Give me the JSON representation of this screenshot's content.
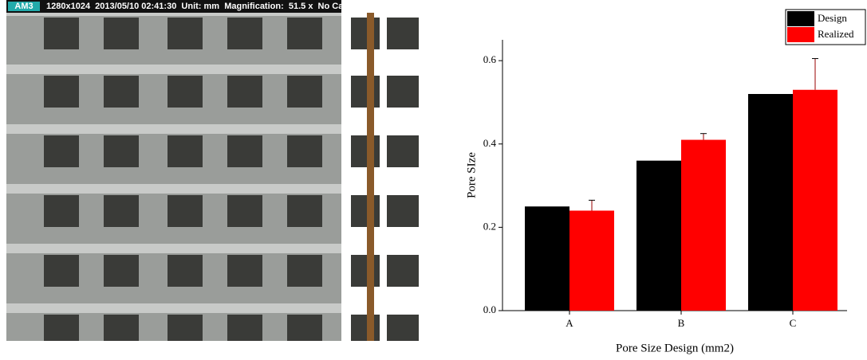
{
  "image": {
    "tag": "AM3",
    "header": "1280x1024  2013/05/10 02:41:30  Unit: mm  Magnification:  51.5 x  No Ca"
  },
  "chart_data": {
    "type": "bar",
    "x_label": "Pore Size Design (mm2)",
    "y_label": "Pore SIze",
    "categories": [
      "A",
      "B",
      "C"
    ],
    "series": [
      {
        "name": "Design",
        "color": "#000000",
        "values": [
          0.25,
          0.36,
          0.52
        ]
      },
      {
        "name": "Realized",
        "color": "#ff0000",
        "values": [
          0.24,
          0.41,
          0.53
        ],
        "errors": [
          0.025,
          0.015,
          0.075
        ]
      }
    ],
    "ylim": [
      0,
      0.65
    ],
    "yticks": [
      {
        "value": 0,
        "label": "0.0"
      },
      0.2,
      0.4,
      0.6
    ],
    "legend": "top-right"
  }
}
